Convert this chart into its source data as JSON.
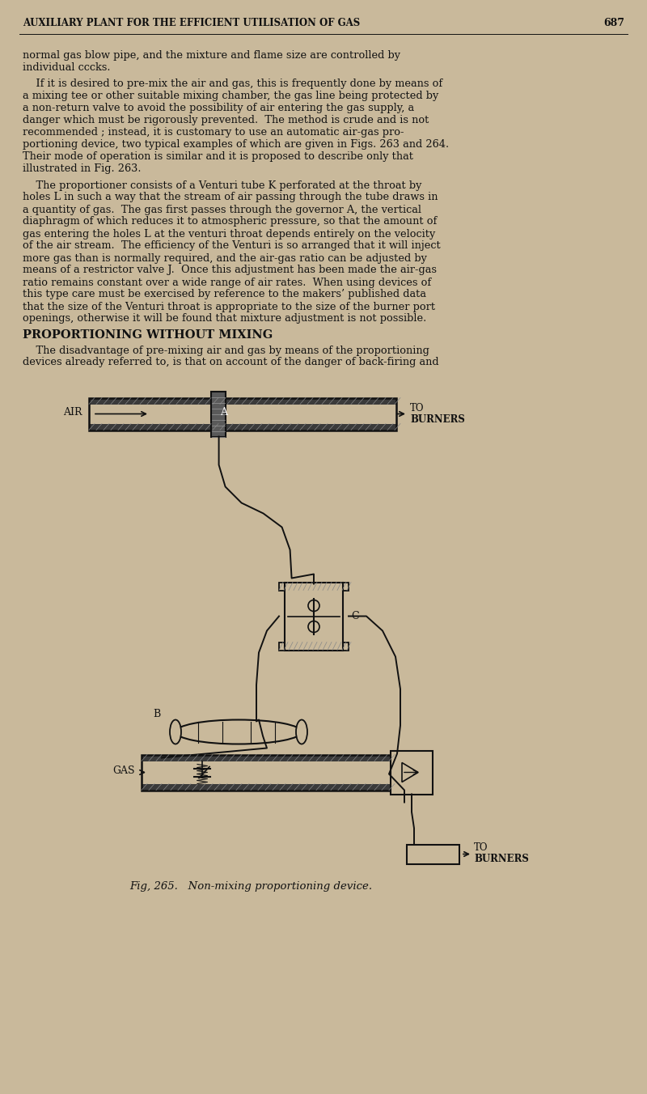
{
  "bg_color": "#c9b99b",
  "text_color": "#111111",
  "line_color": "#111111",
  "header_text": "AUXILIARY PLANT FOR THE EFFICIENT UTILISATION OF GAS",
  "page_num": "687",
  "section_heading": "PROPORTIONING WITHOUT MIXING",
  "body_lines": [
    "normal gas blow pipe, and the mixture and flame size are controlled by",
    "individual cccks.",
    "",
    "    If it is desired to pre-mix the air and gas, this is frequently done by means of",
    "a mixing tee or other suitable mixing chamber, the gas line being protected by",
    "a non-return valve to avoid the possibility of air entering the gas supply, a",
    "danger which must be rigorously prevented.  The method is crude and is not",
    "recommended ; instead, it is customary to use an automatic air-gas pro-",
    "portioning device, two typical examples of which are given in Figs. 263 and 264.",
    "Their mode of operation is similar and it is proposed to describe only that",
    "illustrated in Fig. 263.",
    "",
    "    The proportioner consists of a Venturi tube K perforated at the throat by",
    "holes L in such a way that the stream of air passing through the tube draws in",
    "a quantity of gas.  The gas first passes through the governor A, the vertical",
    "diaphragm of which reduces it to atmospheric pressure, so that the amount of",
    "gas entering the holes L at the venturi throat depends entirely on the velocity",
    "of the air stream.  The efficiency of the Venturi is so arranged that it will inject",
    "more gas than is normally required, and the air-gas ratio can be adjusted by",
    "means of a restrictor valve J.  Once this adjustment has been made the air-gas",
    "ratio remains constant over a wide range of air rates.  When using devices of",
    "this type care must be exercised by reference to the makers’ published data",
    "that the size of the Venturi throat is appropriate to the size of the burner port",
    "openings, otherwise it will be found that mixture adjustment is not possible."
  ],
  "body_after_heading": [
    "    The disadvantage of pre-mixing air and gas by means of the proportioning",
    "devices already referred to, is that on account of the danger of back-firing and"
  ],
  "fig_caption": "Fig, 265.   Non-mixing proportioning device.",
  "air_label": "AIR",
  "label_to": "TO",
  "label_burners": "BURNERS",
  "label_A": "A",
  "label_B": "B",
  "label_C": "C",
  "label_GAS": "GAS",
  "wall_color": "#3a3a3a",
  "dark_gray": "#4a4a4a"
}
